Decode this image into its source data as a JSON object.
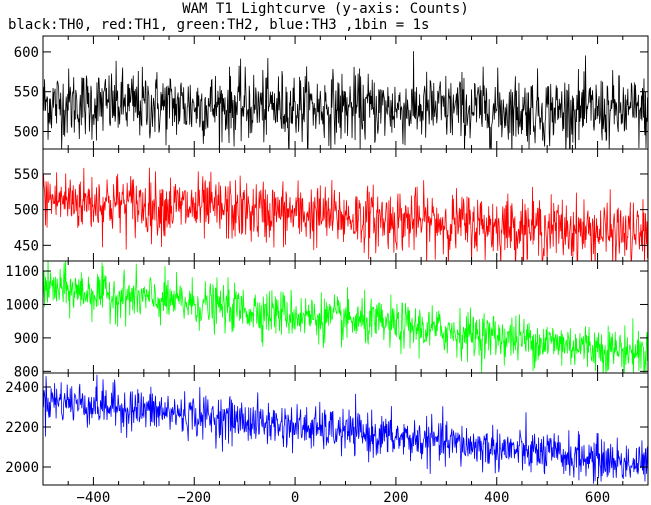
{
  "chart_data": {
    "title": "WAM T1 Lightcurve (y-axis: Counts)",
    "subtitle": "black:TH0, red:TH1, green:TH2, blue:TH3 ,1bin = 1s",
    "type": "line",
    "xlim": [
      -500,
      700
    ],
    "x_ticks": [
      -400,
      -200,
      0,
      200,
      400,
      600
    ],
    "x_tick_labels": [
      "−400",
      "−200",
      "0",
      "200",
      "400",
      "600"
    ],
    "bin_size_s": 1,
    "panels": [
      {
        "name": "TH0",
        "color": "#000000",
        "ylim": [
          478,
          620
        ],
        "y_ticks": [
          500,
          550,
          600
        ],
        "trend": {
          "start": 535,
          "end": 525
        },
        "noise_sd": 22
      },
      {
        "name": "TH1",
        "color": "#ff0000",
        "ylim": [
          428,
          585
        ],
        "y_ticks": [
          450,
          500,
          550
        ],
        "trend": {
          "start": 515,
          "end": 465
        },
        "noise_sd": 22
      },
      {
        "name": "TH2",
        "color": "#00ff00",
        "ylim": [
          795,
          1130
        ],
        "y_ticks": [
          800,
          900,
          1000,
          1100
        ],
        "trend": {
          "start": 1050,
          "end": 855
        },
        "noise_sd": 35
      },
      {
        "name": "TH3",
        "color": "#0000ff",
        "ylim": [
          1910,
          2470
        ],
        "y_ticks": [
          2000,
          2200,
          2400
        ],
        "trend": {
          "start": 2340,
          "end": 2010
        },
        "noise_sd": 55
      }
    ]
  }
}
